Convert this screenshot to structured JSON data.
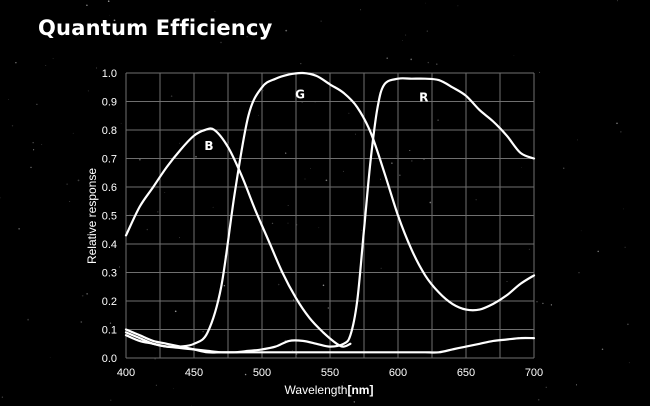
{
  "title": "Quantum Efficiency",
  "colors": {
    "background": "#000000",
    "curve": "#ffffff",
    "grid": "#6f6f6f",
    "text": "#ffffff"
  },
  "chart_data": {
    "type": "line",
    "title": "Quantum Efficiency",
    "xlabel": "Wavelength",
    "xunit": "[nm]",
    "ylabel": "Relative response",
    "xlim": [
      400,
      700
    ],
    "ylim": [
      0,
      1.0
    ],
    "grid": true,
    "xticks": [
      "400",
      "450",
      "500",
      "550",
      "600",
      "650",
      "700"
    ],
    "yticks": [
      "0.0",
      "0.1",
      "0.2",
      "0.3",
      "0.4",
      "0.5",
      "0.6",
      "0.7",
      "0.8",
      "0.9",
      "1.0"
    ],
    "series": [
      {
        "name": "B",
        "label": {
          "x": 461,
          "y": 0.73
        },
        "points": [
          [
            400,
            0.43
          ],
          [
            410,
            0.53
          ],
          [
            420,
            0.6
          ],
          [
            430,
            0.67
          ],
          [
            440,
            0.73
          ],
          [
            450,
            0.78
          ],
          [
            458,
            0.8
          ],
          [
            465,
            0.8
          ],
          [
            475,
            0.74
          ],
          [
            485,
            0.64
          ],
          [
            495,
            0.52
          ],
          [
            505,
            0.41
          ],
          [
            515,
            0.3
          ],
          [
            525,
            0.21
          ],
          [
            535,
            0.14
          ],
          [
            545,
            0.09
          ],
          [
            555,
            0.05
          ],
          [
            560,
            0.04
          ],
          [
            565,
            0.05
          ]
        ]
      },
      {
        "name": "G",
        "label": {
          "x": 528,
          "y": 0.91
        },
        "points": [
          [
            400,
            0.09
          ],
          [
            410,
            0.07
          ],
          [
            420,
            0.05
          ],
          [
            430,
            0.04
          ],
          [
            440,
            0.04
          ],
          [
            450,
            0.05
          ],
          [
            460,
            0.09
          ],
          [
            470,
            0.25
          ],
          [
            480,
            0.58
          ],
          [
            490,
            0.85
          ],
          [
            500,
            0.95
          ],
          [
            510,
            0.98
          ],
          [
            520,
            0.995
          ],
          [
            530,
            1.0
          ],
          [
            540,
            0.99
          ],
          [
            550,
            0.96
          ],
          [
            560,
            0.93
          ],
          [
            570,
            0.88
          ],
          [
            580,
            0.79
          ],
          [
            590,
            0.65
          ],
          [
            600,
            0.5
          ],
          [
            610,
            0.38
          ],
          [
            620,
            0.29
          ],
          [
            630,
            0.23
          ],
          [
            640,
            0.19
          ],
          [
            650,
            0.17
          ],
          [
            660,
            0.17
          ],
          [
            670,
            0.19
          ],
          [
            680,
            0.22
          ],
          [
            690,
            0.26
          ],
          [
            700,
            0.29
          ]
        ]
      },
      {
        "name": "R",
        "label": {
          "x": 619,
          "y": 0.9
        },
        "points": [
          [
            400,
            0.1
          ],
          [
            410,
            0.08
          ],
          [
            420,
            0.06
          ],
          [
            430,
            0.05
          ],
          [
            440,
            0.04
          ],
          [
            450,
            0.03
          ],
          [
            460,
            0.02
          ],
          [
            470,
            0.02
          ],
          [
            480,
            0.02
          ],
          [
            490,
            0.025
          ],
          [
            500,
            0.03
          ],
          [
            510,
            0.04
          ],
          [
            520,
            0.06
          ],
          [
            530,
            0.06
          ],
          [
            540,
            0.05
          ],
          [
            550,
            0.04
          ],
          [
            560,
            0.05
          ],
          [
            565,
            0.08
          ],
          [
            570,
            0.2
          ],
          [
            575,
            0.45
          ],
          [
            580,
            0.7
          ],
          [
            585,
            0.88
          ],
          [
            590,
            0.96
          ],
          [
            600,
            0.98
          ],
          [
            610,
            0.98
          ],
          [
            620,
            0.98
          ],
          [
            630,
            0.975
          ],
          [
            640,
            0.95
          ],
          [
            650,
            0.92
          ],
          [
            660,
            0.87
          ],
          [
            670,
            0.83
          ],
          [
            680,
            0.78
          ],
          [
            690,
            0.72
          ],
          [
            700,
            0.7
          ]
        ]
      },
      {
        "name": "baseline",
        "label": null,
        "points": [
          [
            400,
            0.08
          ],
          [
            410,
            0.06
          ],
          [
            420,
            0.05
          ],
          [
            430,
            0.04
          ],
          [
            440,
            0.035
          ],
          [
            450,
            0.03
          ],
          [
            460,
            0.025
          ],
          [
            470,
            0.02
          ],
          [
            480,
            0.02
          ],
          [
            490,
            0.02
          ],
          [
            500,
            0.02
          ],
          [
            510,
            0.02
          ],
          [
            520,
            0.02
          ],
          [
            530,
            0.02
          ],
          [
            540,
            0.02
          ],
          [
            550,
            0.02
          ],
          [
            560,
            0.02
          ],
          [
            570,
            0.02
          ],
          [
            580,
            0.02
          ],
          [
            590,
            0.02
          ],
          [
            600,
            0.02
          ],
          [
            610,
            0.02
          ],
          [
            620,
            0.02
          ],
          [
            630,
            0.02
          ],
          [
            640,
            0.03
          ],
          [
            650,
            0.04
          ],
          [
            660,
            0.05
          ],
          [
            670,
            0.06
          ],
          [
            680,
            0.065
          ],
          [
            690,
            0.07
          ],
          [
            700,
            0.07
          ]
        ]
      }
    ]
  }
}
